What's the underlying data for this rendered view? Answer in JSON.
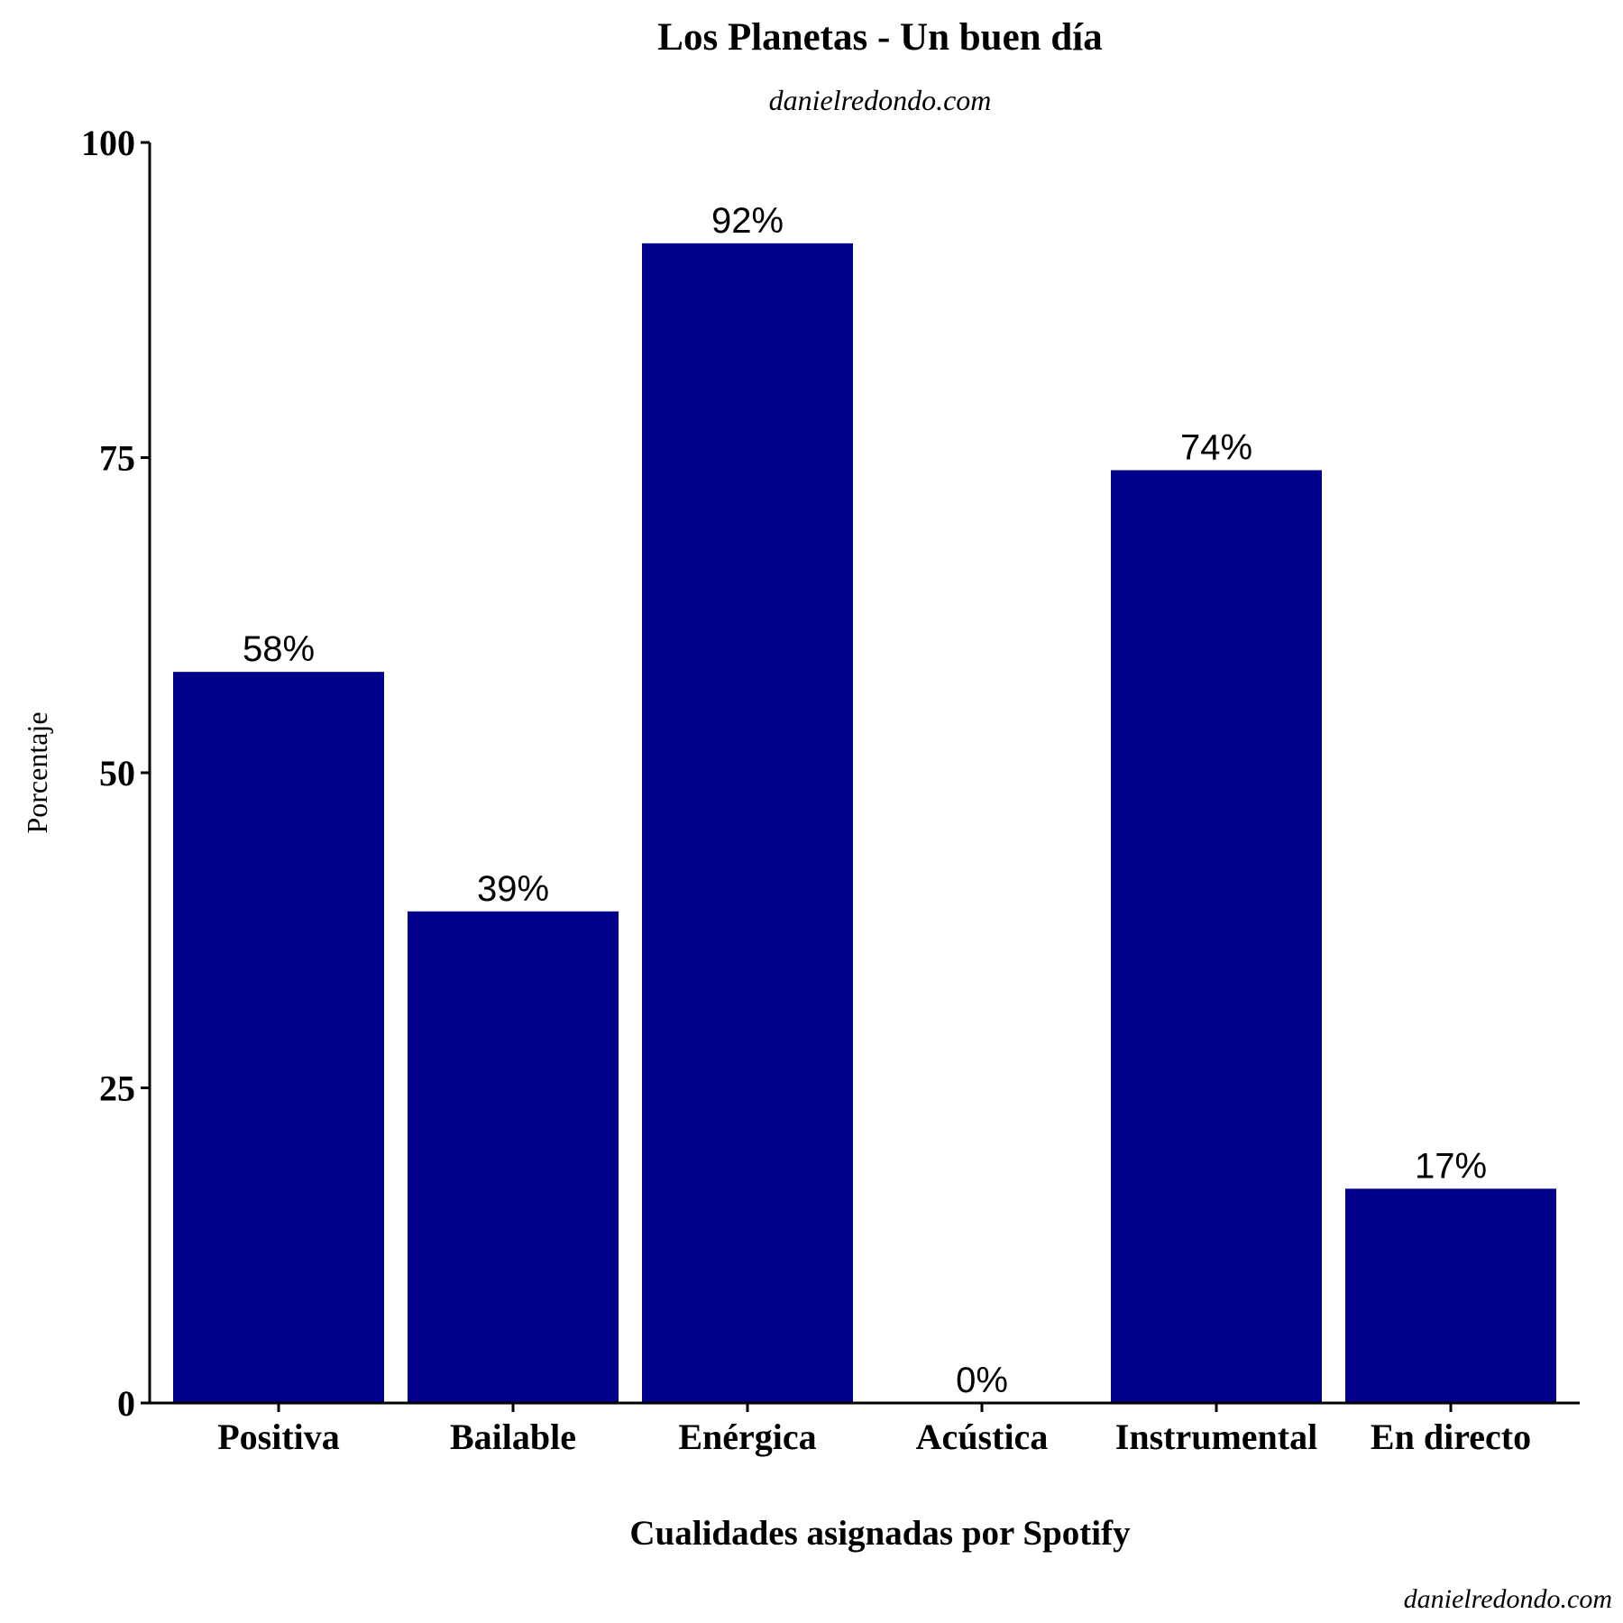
{
  "chart_data": {
    "type": "bar",
    "title": "Los Planetas - Un buen día",
    "subtitle": "danielredondo.com",
    "xlabel": "Cualidades asignadas por Spotify",
    "ylabel": "Porcentaje",
    "caption": "danielredondo.com",
    "categories": [
      "Positiva",
      "Bailable",
      "Enérgica",
      "Acústica",
      "Instrumental",
      "En directo"
    ],
    "values": [
      58,
      39,
      92,
      0,
      74,
      17
    ],
    "data_labels": [
      "58%",
      "39%",
      "92%",
      "0%",
      "74%",
      "17%"
    ],
    "yticks": [
      0,
      25,
      50,
      75,
      100
    ],
    "ytick_labels": [
      "0",
      "25",
      "50",
      "75",
      "100"
    ],
    "ylim": [
      0,
      100
    ],
    "grid": false,
    "legend": "none",
    "bar_color": "#00008B"
  }
}
